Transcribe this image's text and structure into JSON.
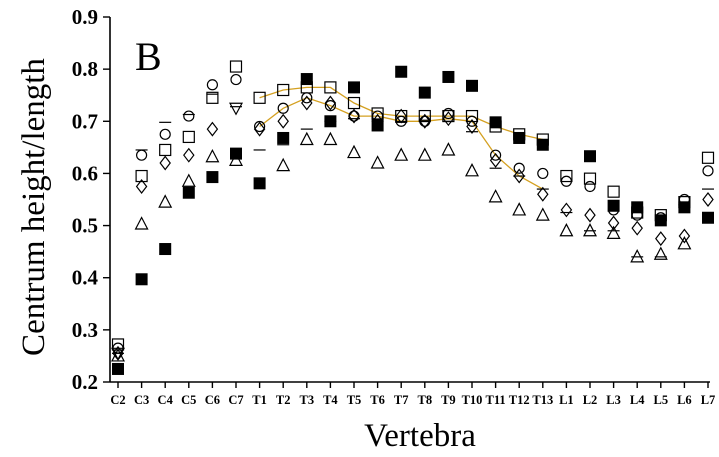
{
  "chart_data": {
    "type": "scatter",
    "panel_label": "B",
    "xlabel": "Vertebra",
    "ylabel": "Centrum height/length",
    "ylim": [
      0.2,
      0.9
    ],
    "yticks": [
      "0.2",
      "0.3",
      "0.4",
      "0.5",
      "0.6",
      "0.7",
      "0.8",
      "0.9"
    ],
    "categories": [
      "C2",
      "C3",
      "C4",
      "C5",
      "C6",
      "C7",
      "T1",
      "T2",
      "T3",
      "T4",
      "T5",
      "T6",
      "T7",
      "T8",
      "T9",
      "T10",
      "T11",
      "T12",
      "T13",
      "L1",
      "L2",
      "L3",
      "L4",
      "L5",
      "L6",
      "L7"
    ],
    "xtick_labels": [
      "C2",
      "C3",
      "C4",
      "C5",
      "C6",
      "C7",
      "T1",
      "T2",
      "T3",
      "T4",
      "T5",
      "T6",
      "T7",
      "T8",
      "T9",
      "T10",
      "T11",
      "T12",
      "T13",
      "L1",
      "L2",
      "L3",
      "L4",
      "L5",
      "L6",
      "L7"
    ],
    "grid": false,
    "series": [
      {
        "marker": "square-filled",
        "values": [
          0.225,
          0.397,
          0.455,
          0.563,
          0.593,
          0.638,
          0.581,
          0.668,
          0.781,
          0.7,
          0.765,
          0.692,
          0.795,
          0.755,
          0.785,
          0.768,
          0.698,
          0.668,
          0.655,
          null,
          0.633,
          0.538,
          0.535,
          0.51,
          0.535,
          0.515
        ]
      },
      {
        "marker": "square-open",
        "values": [
          0.272,
          0.595,
          0.645,
          0.67,
          0.745,
          0.805,
          0.745,
          0.76,
          0.765,
          0.765,
          0.735,
          0.715,
          0.71,
          0.71,
          0.71,
          0.71,
          0.69,
          0.675,
          0.665,
          0.595,
          0.59,
          0.565,
          0.525,
          0.52,
          0.545,
          0.63
        ]
      },
      {
        "marker": "circle",
        "values": [
          0.265,
          0.635,
          0.675,
          0.71,
          0.77,
          0.78,
          0.69,
          0.725,
          0.745,
          0.73,
          0.71,
          0.71,
          0.7,
          0.7,
          0.715,
          0.7,
          0.635,
          0.61,
          0.6,
          0.585,
          0.575,
          0.53,
          0.52,
          0.515,
          0.55,
          0.605
        ]
      },
      {
        "marker": "diamond",
        "values": [
          0.255,
          0.575,
          0.62,
          0.635,
          0.685,
          null,
          0.685,
          0.7,
          0.735,
          0.735,
          0.71,
          0.7,
          0.71,
          0.7,
          0.705,
          0.69,
          0.625,
          0.595,
          0.56,
          0.53,
          0.52,
          0.505,
          0.495,
          0.475,
          0.48,
          0.55
        ]
      },
      {
        "marker": "triangle",
        "values": [
          0.25,
          0.503,
          0.545,
          0.585,
          0.632,
          0.625,
          null,
          0.615,
          0.665,
          0.665,
          0.64,
          0.62,
          0.635,
          0.635,
          0.645,
          0.605,
          0.555,
          0.53,
          0.52,
          0.49,
          0.49,
          0.485,
          0.44,
          0.445,
          0.465,
          null
        ]
      },
      {
        "marker": "dash",
        "values": [
          0.255,
          0.645,
          0.698,
          0.713,
          0.752,
          0.728,
          0.645,
          0.655,
          0.685,
          0.7,
          0.705,
          0.7,
          0.698,
          0.702,
          0.7,
          0.68,
          0.61,
          0.595,
          0.57,
          0.525,
          0.49,
          0.49,
          0.44,
          0.44,
          0.54,
          0.57
        ]
      },
      {
        "marker": "inverted-triangle",
        "values": [
          0.255,
          null,
          null,
          null,
          null,
          0.725,
          null,
          null,
          null,
          null,
          null,
          null,
          null,
          null,
          null,
          null,
          null,
          null,
          null,
          null,
          null,
          null,
          null,
          null,
          null,
          null
        ]
      }
    ],
    "trend_lines": [
      {
        "from": "T1",
        "to": "T13",
        "values": [
          0.745,
          0.76,
          0.765,
          0.765,
          0.735,
          0.715,
          0.71,
          0.71,
          0.71,
          0.71,
          0.69,
          0.675,
          0.665
        ]
      },
      {
        "from": "T1",
        "to": "T13",
        "values": [
          0.69,
          0.725,
          0.745,
          0.73,
          0.71,
          0.71,
          0.7,
          0.7,
          0.705,
          0.7,
          0.635,
          0.595,
          0.57
        ]
      }
    ]
  }
}
